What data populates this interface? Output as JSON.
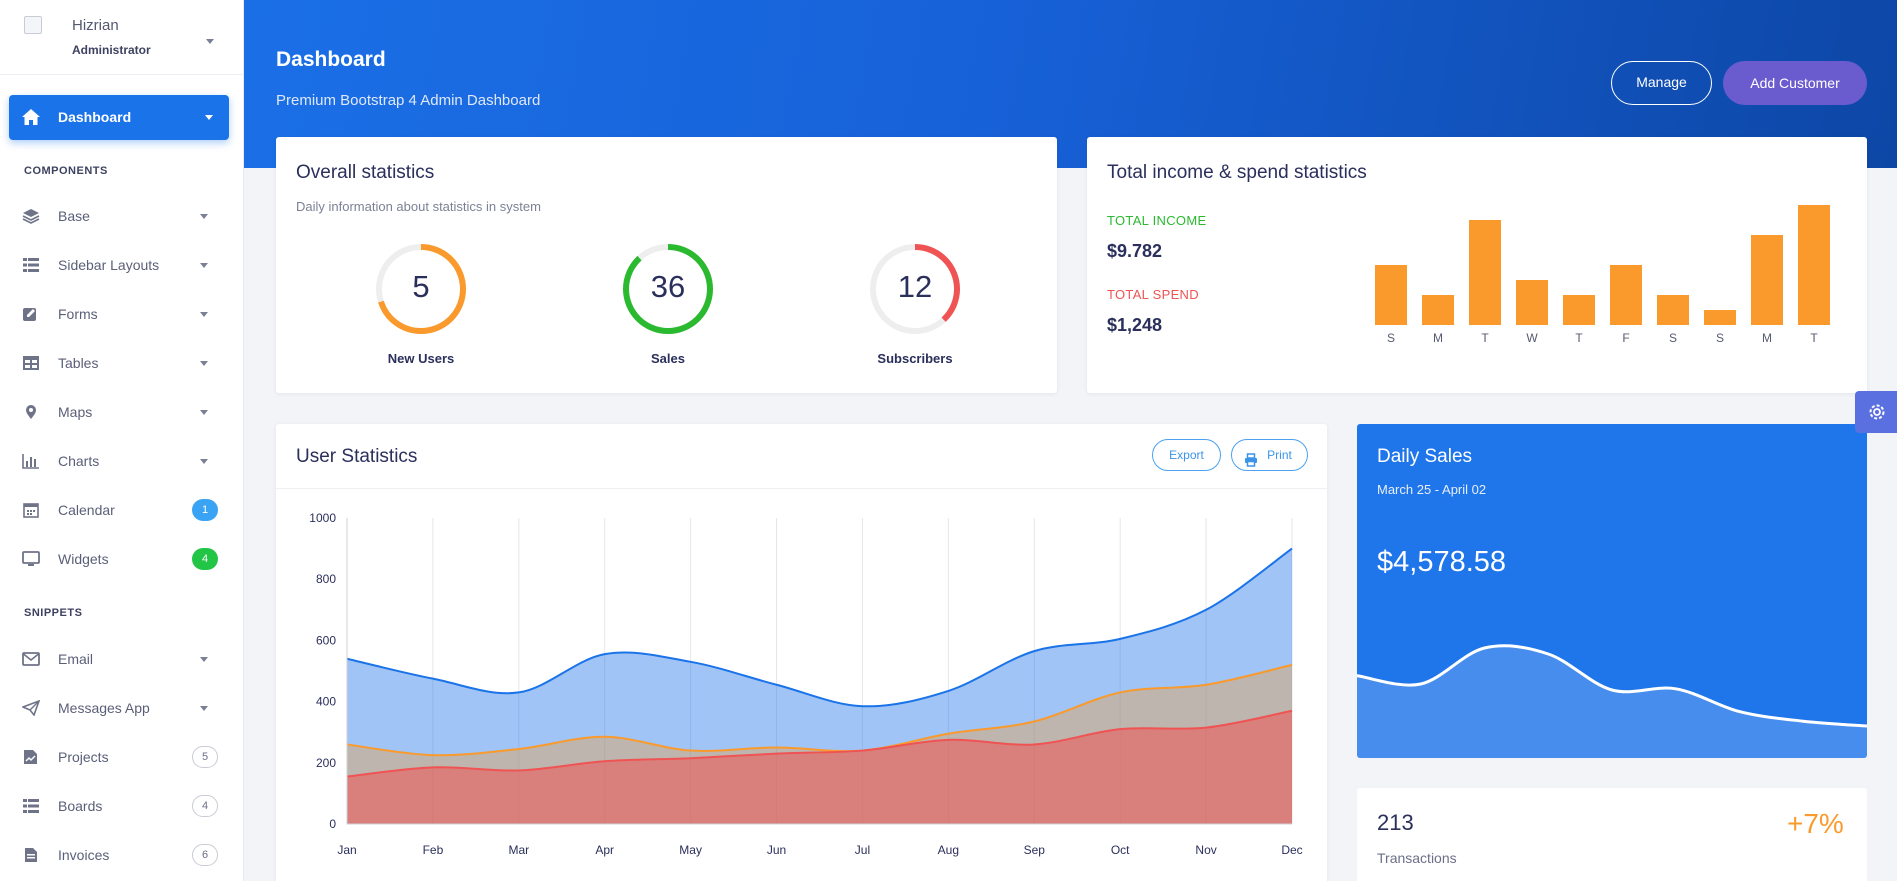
{
  "profile": {
    "name": "Hizrian",
    "role": "Administrator"
  },
  "nav": {
    "active": {
      "label": "Dashboard"
    },
    "section_components": "COMPONENTS",
    "components": [
      {
        "label": "Base",
        "icon": "layers-icon",
        "type": "caret"
      },
      {
        "label": "Sidebar Layouts",
        "icon": "list-icon",
        "type": "caret"
      },
      {
        "label": "Forms",
        "icon": "pencil-square-icon",
        "type": "caret"
      },
      {
        "label": "Tables",
        "icon": "table-icon",
        "type": "caret"
      },
      {
        "label": "Maps",
        "icon": "map-pin-icon",
        "type": "caret"
      },
      {
        "label": "Charts",
        "icon": "bar-chart-icon",
        "type": "caret"
      },
      {
        "label": "Calendar",
        "icon": "calendar-icon",
        "type": "badge",
        "badge": "1",
        "badge_style": "blue"
      },
      {
        "label": "Widgets",
        "icon": "desktop-icon",
        "type": "badge",
        "badge": "4",
        "badge_style": "green"
      }
    ],
    "section_snippets": "SNIPPETS",
    "snippets": [
      {
        "label": "Email",
        "icon": "envelope-icon",
        "type": "caret"
      },
      {
        "label": "Messages App",
        "icon": "paper-plane-icon",
        "type": "caret"
      },
      {
        "label": "Projects",
        "icon": "file-chart-icon",
        "type": "badge",
        "badge": "5",
        "badge_style": "outline"
      },
      {
        "label": "Boards",
        "icon": "list-icon",
        "type": "badge",
        "badge": "4",
        "badge_style": "outline"
      },
      {
        "label": "Invoices",
        "icon": "invoice-icon",
        "type": "badge",
        "badge": "6",
        "badge_style": "outline"
      }
    ]
  },
  "header": {
    "title": "Dashboard",
    "subtitle": "Premium Bootstrap 4 Admin Dashboard",
    "manage_label": "Manage",
    "add_customer_label": "Add Customer"
  },
  "overall": {
    "title": "Overall statistics",
    "subtitle": "Daily information about statistics in system",
    "stats": [
      {
        "value": "5",
        "label": "New Users",
        "color": "#fa9a2c",
        "fraction": 0.7
      },
      {
        "value": "36",
        "label": "Sales",
        "color": "#2bb930",
        "fraction": 0.88
      },
      {
        "value": "12",
        "label": "Subscribers",
        "color": "#ef5353",
        "fraction": 0.38
      }
    ]
  },
  "income": {
    "title": "Total income & spend statistics",
    "income_label": "TOTAL INCOME",
    "income_value": "$9.782",
    "spend_label": "TOTAL SPEND",
    "spend_value": "$1,248",
    "income_color": "#2bb930",
    "spend_color": "#ef5353"
  },
  "user_stats": {
    "title": "User Statistics",
    "export_label": "Export",
    "print_label": "Print"
  },
  "daily_sales": {
    "title": "Daily Sales",
    "range": "March 25 - April 02",
    "value": "$4,578.58"
  },
  "transactions": {
    "value": "213",
    "label": "Transactions",
    "change": "+7%"
  },
  "chart_data": [
    {
      "type": "bar",
      "categories": [
        "S",
        "M",
        "T",
        "W",
        "T",
        "F",
        "S",
        "S",
        "M",
        "T"
      ],
      "values": [
        10,
        5,
        17.5,
        7.5,
        5,
        10,
        5,
        2.5,
        15,
        20
      ],
      "color": "#fa9a2c",
      "ylim": [
        0,
        20
      ]
    },
    {
      "type": "area",
      "categories": [
        "Jan",
        "Feb",
        "Mar",
        "Apr",
        "May",
        "Jun",
        "Jul",
        "Aug",
        "Sep",
        "Oct",
        "Nov",
        "Dec"
      ],
      "ylim": [
        0,
        1000
      ],
      "yticks": [
        0,
        200,
        400,
        600,
        800,
        1000
      ],
      "grid": true,
      "series": [
        {
          "values": [
            540,
            475,
            430,
            555,
            530,
            455,
            385,
            435,
            565,
            605,
            700,
            900
          ],
          "color": "#1a73e8"
        },
        {
          "values": [
            260,
            225,
            245,
            285,
            240,
            250,
            240,
            295,
            335,
            430,
            455,
            520
          ],
          "color": "#fa9a2c"
        },
        {
          "values": [
            155,
            185,
            175,
            205,
            215,
            230,
            240,
            275,
            260,
            310,
            315,
            370
          ],
          "color": "#ef5353"
        }
      ]
    },
    {
      "type": "area",
      "values": [
        52,
        45,
        75,
        70,
        40,
        41,
        22,
        14,
        10
      ],
      "color": "#ffffff"
    }
  ]
}
